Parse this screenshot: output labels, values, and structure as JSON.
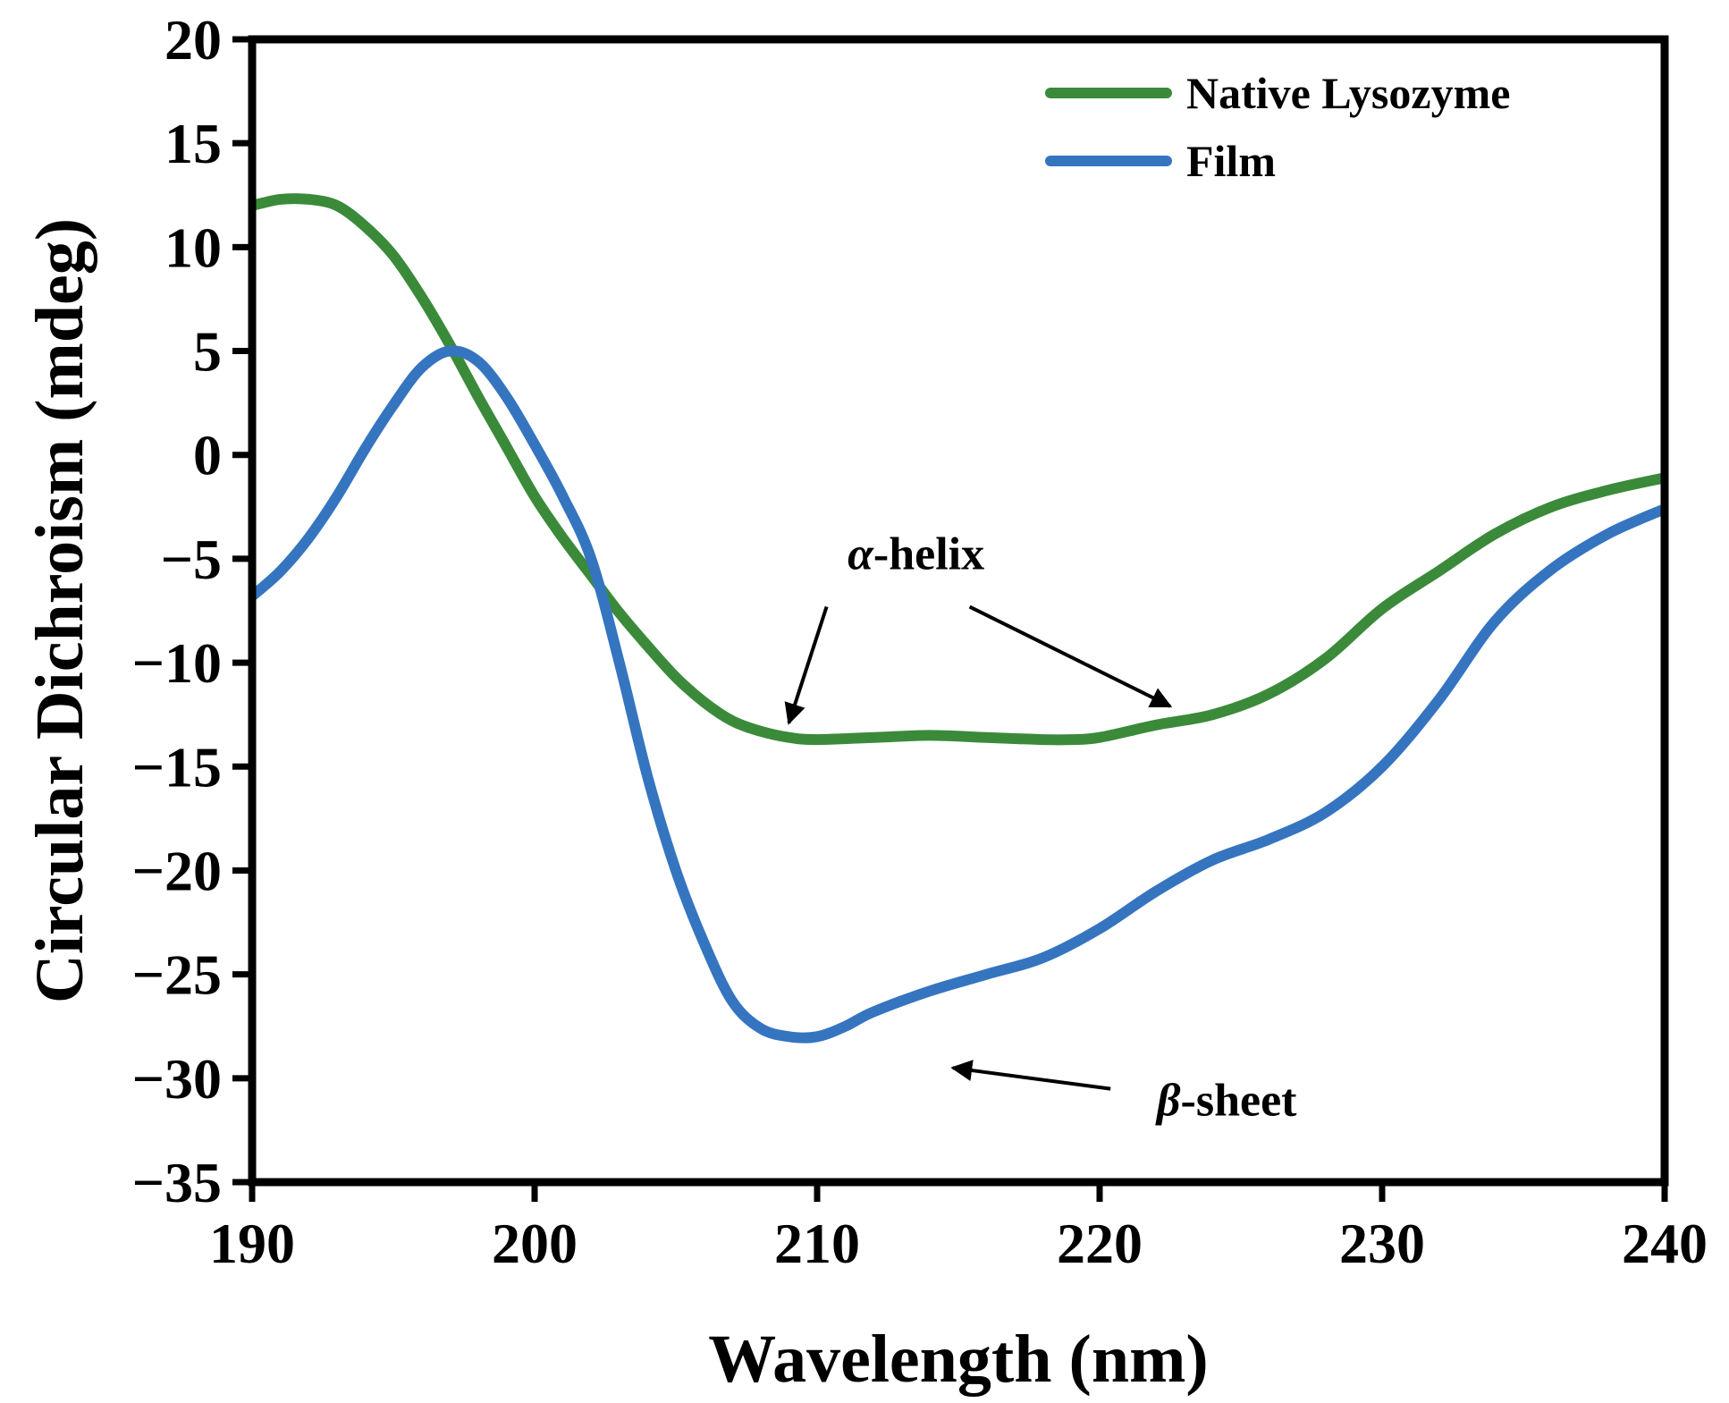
{
  "chart_data": {
    "type": "line",
    "title": "",
    "xlabel": "Wavelength (nm)",
    "ylabel": "Circular Dichroism (mdeg)",
    "xlim": [
      190,
      240
    ],
    "ylim": [
      -35,
      20
    ],
    "xticks": [
      190,
      200,
      210,
      220,
      230,
      240
    ],
    "yticks": [
      20,
      15,
      10,
      5,
      0,
      -5,
      -10,
      -15,
      -20,
      -25,
      -30,
      -35
    ],
    "xtick_labels": [
      "190",
      "200",
      "210",
      "220",
      "230",
      "240"
    ],
    "ytick_labels": [
      "20",
      "15",
      "10",
      "5",
      "0",
      "−5",
      "−10",
      "−15",
      "−20",
      "−25",
      "−30",
      "−35"
    ],
    "grid": false,
    "legend_position": "top-right",
    "series": [
      {
        "name": "Native Lysozyme",
        "color": "#3a8a3a",
        "x": [
          190,
          191,
          192,
          193,
          194,
          195,
          196,
          197,
          198,
          199,
          200,
          201,
          202,
          203,
          204,
          205,
          206,
          207,
          208,
          209,
          210,
          212,
          214,
          216,
          218,
          219,
          220,
          222,
          224,
          226,
          228,
          230,
          232,
          234,
          236,
          238,
          240
        ],
        "values": [
          12.0,
          12.3,
          12.3,
          12.0,
          11.0,
          9.6,
          7.6,
          5.3,
          2.8,
          0.4,
          -2.0,
          -4.0,
          -5.8,
          -7.6,
          -9.2,
          -10.7,
          -11.9,
          -12.8,
          -13.3,
          -13.6,
          -13.7,
          -13.6,
          -13.5,
          -13.6,
          -13.7,
          -13.7,
          -13.6,
          -13.0,
          -12.5,
          -11.5,
          -9.8,
          -7.4,
          -5.6,
          -3.8,
          -2.5,
          -1.7,
          -1.1
        ]
      },
      {
        "name": "Film",
        "color": "#3575c0",
        "x": [
          190,
          191,
          192,
          193,
          194,
          195,
          196,
          197,
          198,
          199,
          200,
          201,
          202,
          203,
          204,
          205,
          206,
          207,
          208,
          209,
          210,
          211,
          212,
          214,
          216,
          218,
          220,
          222,
          224,
          226,
          228,
          230,
          232,
          234,
          236,
          238,
          240
        ],
        "values": [
          -6.8,
          -5.6,
          -4.0,
          -2.0,
          0.3,
          2.4,
          4.2,
          5.0,
          4.5,
          2.8,
          0.5,
          -2.0,
          -5.0,
          -10.0,
          -15.5,
          -20.0,
          -23.5,
          -26.3,
          -27.6,
          -28.0,
          -28.0,
          -27.5,
          -26.8,
          -25.8,
          -25.0,
          -24.2,
          -22.8,
          -21.0,
          -19.5,
          -18.5,
          -17.2,
          -15.0,
          -11.8,
          -8.0,
          -5.5,
          -3.8,
          -2.6
        ]
      }
    ],
    "annotations": [
      {
        "symbol": "α",
        "text": "-helix",
        "x": 213.5,
        "y": -5.5,
        "arrows_to": [
          [
            209,
            -12.9
          ],
          [
            222.5,
            -12.1
          ]
        ]
      },
      {
        "symbol": "β",
        "text": "-sheet",
        "x": 224.5,
        "y": -31.8,
        "arrows_to": [
          [
            214.8,
            -29.5
          ]
        ]
      }
    ]
  }
}
